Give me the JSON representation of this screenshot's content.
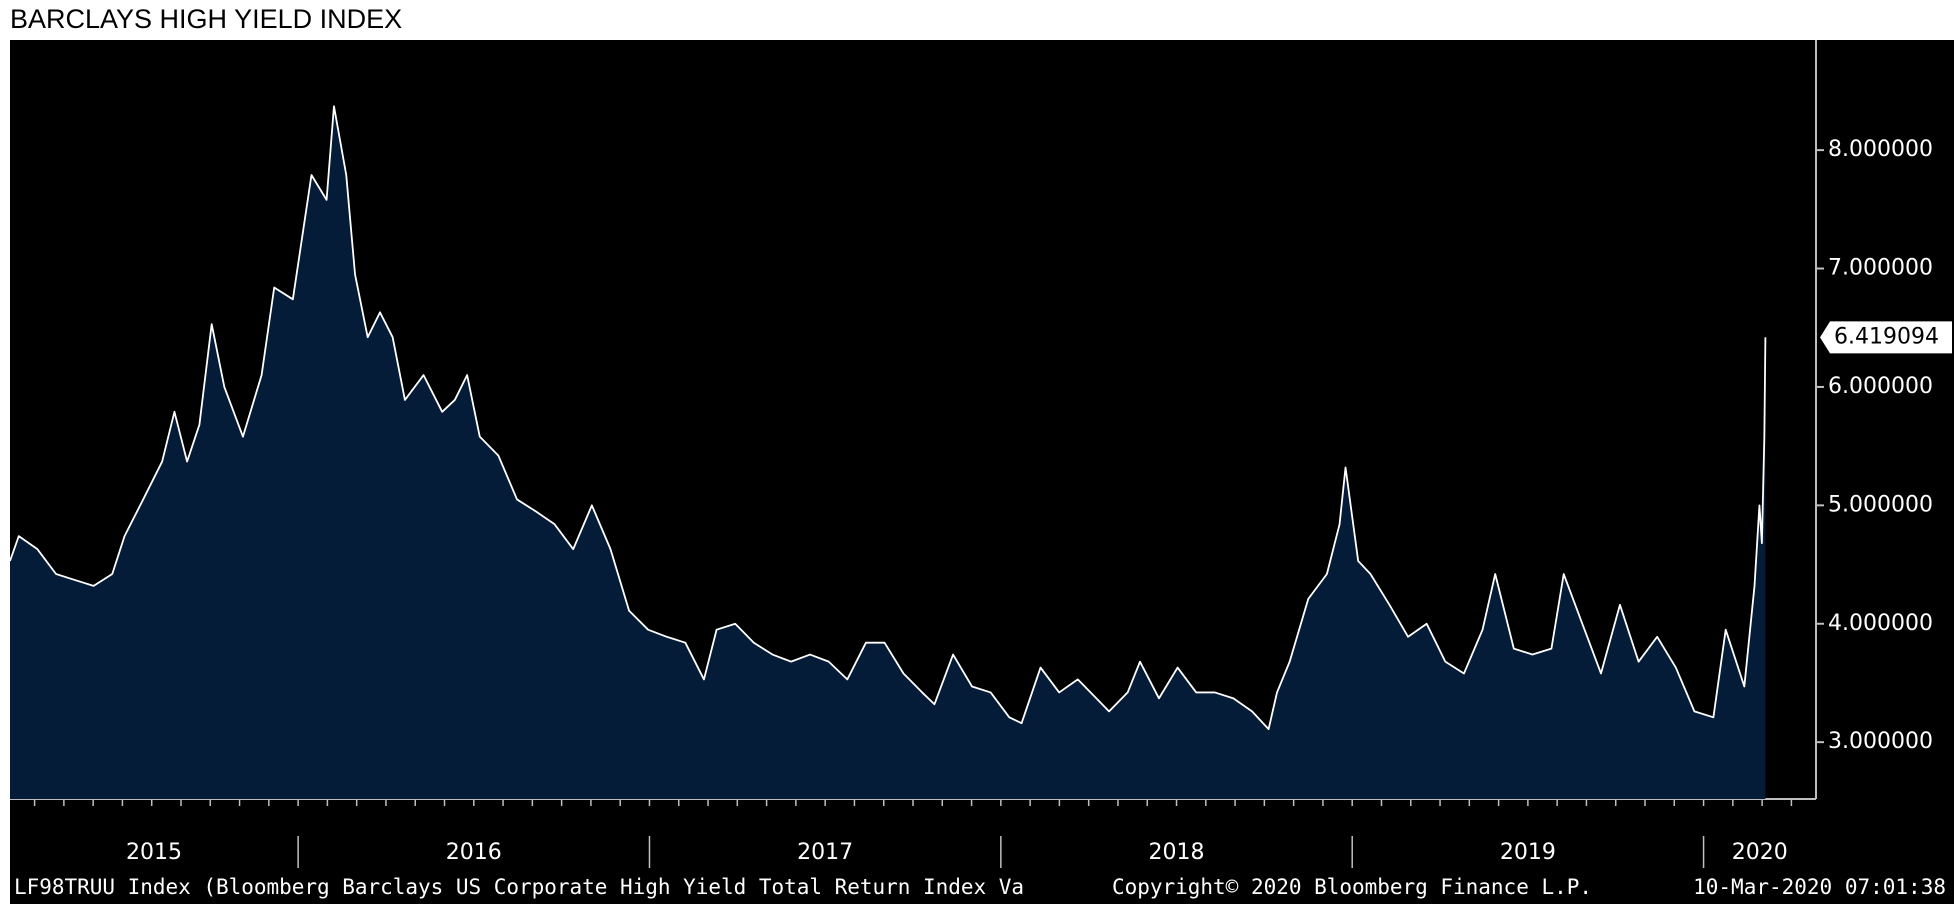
{
  "chart_data": {
    "type": "area",
    "title": "BARCLAYS HIGH YIELD INDEX",
    "source": "LF98TRUU Index (Bloomberg Barclays US Corporate High Yield Total Return Index Va",
    "copyright": "Copyright© 2020 Bloomberg Finance L.P.",
    "timestamp": "10-Mar-2020 07:01:38",
    "color": "#ffffff",
    "fill_color": "#051c38",
    "x": [
      2015.18,
      2015.205,
      2015.258,
      2015.311,
      2015.364,
      2015.418,
      2015.471,
      2015.506,
      2015.559,
      2015.613,
      2015.648,
      2015.684,
      2015.719,
      2015.754,
      2015.79,
      2015.843,
      2015.896,
      2015.932,
      2015.985,
      2016.038,
      2016.081,
      2016.102,
      2016.137,
      2016.162,
      2016.198,
      2016.233,
      2016.269,
      2016.304,
      2016.357,
      2016.41,
      2016.446,
      2016.481,
      2016.517,
      2016.57,
      2016.623,
      2016.676,
      2016.73,
      2016.783,
      2016.836,
      2016.889,
      2016.942,
      2016.996,
      2017.049,
      2017.102,
      2017.155,
      2017.191,
      2017.244,
      2017.297,
      2017.35,
      2017.403,
      2017.457,
      2017.51,
      2017.563,
      2017.616,
      2017.669,
      2017.723,
      2017.776,
      2017.811,
      2017.864,
      2017.918,
      2017.971,
      2018.024,
      2018.059,
      2018.113,
      2018.166,
      2018.219,
      2018.272,
      2018.308,
      2018.361,
      2018.396,
      2018.45,
      2018.503,
      2018.556,
      2018.609,
      2018.662,
      2018.715,
      2018.762,
      2018.786,
      2018.822,
      2018.875,
      2018.928,
      2018.964,
      2018.981,
      2019.017,
      2019.052,
      2019.106,
      2019.159,
      2019.212,
      2019.265,
      2019.318,
      2019.371,
      2019.407,
      2019.46,
      2019.513,
      2019.567,
      2019.602,
      2019.655,
      2019.708,
      2019.762,
      2019.815,
      2019.868,
      2019.921,
      2019.974,
      2020.028,
      2020.063,
      2020.116,
      2020.145,
      2020.159,
      2020.166,
      2020.173,
      2020.176
    ],
    "values": [
      4.53,
      4.74,
      4.63,
      4.42,
      4.37,
      4.32,
      4.42,
      4.74,
      5.05,
      5.37,
      5.79,
      5.37,
      5.68,
      6.53,
      6.0,
      5.58,
      6.1,
      6.84,
      6.74,
      7.79,
      7.58,
      8.37,
      7.79,
      6.95,
      6.42,
      6.63,
      6.42,
      5.89,
      6.1,
      5.79,
      5.89,
      6.1,
      5.58,
      5.42,
      5.05,
      4.95,
      4.84,
      4.63,
      5.0,
      4.63,
      4.11,
      3.95,
      3.89,
      3.84,
      3.53,
      3.95,
      4.0,
      3.84,
      3.74,
      3.68,
      3.74,
      3.68,
      3.53,
      3.84,
      3.84,
      3.58,
      3.42,
      3.32,
      3.74,
      3.47,
      3.42,
      3.21,
      3.16,
      3.63,
      3.42,
      3.53,
      3.37,
      3.26,
      3.42,
      3.68,
      3.37,
      3.63,
      3.42,
      3.42,
      3.37,
      3.26,
      3.11,
      3.42,
      3.68,
      4.21,
      4.42,
      4.84,
      5.32,
      4.53,
      4.42,
      4.16,
      3.89,
      4.0,
      3.68,
      3.58,
      3.95,
      4.42,
      3.79,
      3.74,
      3.79,
      4.42,
      4.0,
      3.58,
      4.16,
      3.68,
      3.89,
      3.63,
      3.26,
      3.21,
      3.95,
      3.47,
      4.32,
      5.0,
      4.68,
      5.58,
      6.419094
    ],
    "xlim": [
      2015.18,
      2020.32
    ],
    "xticks": [
      {
        "value": 2015.59,
        "label": "2015"
      },
      {
        "value": 2016.5,
        "label": "2016"
      },
      {
        "value": 2017.5,
        "label": "2017"
      },
      {
        "value": 2018.5,
        "label": "2018"
      },
      {
        "value": 2019.5,
        "label": "2019"
      },
      {
        "value": 2020.16,
        "label": "2020"
      }
    ],
    "ylim": [
      2.52,
      8.93
    ],
    "yticks": [
      {
        "value": 3,
        "label": "3.000000"
      },
      {
        "value": 4,
        "label": "4.000000"
      },
      {
        "value": 5,
        "label": "5.000000"
      },
      {
        "value": 6,
        "label": "6.000000"
      },
      {
        "value": 7,
        "label": "7.000000"
      },
      {
        "value": 8,
        "label": "8.000000"
      }
    ]
  }
}
